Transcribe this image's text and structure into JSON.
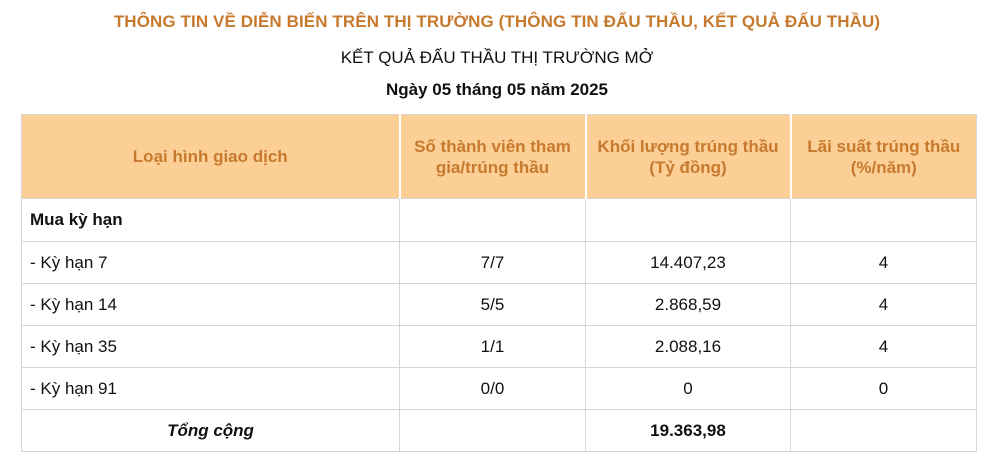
{
  "header": {
    "title": "THÔNG TIN VỀ DIỄN BIẾN TRÊN THỊ TRƯỜNG (THÔNG TIN ĐẤU THẦU, KẾT QUẢ ĐẤU THẦU)",
    "subtitle": "KẾT QUẢ ĐẤU THẦU THỊ TRƯỜNG MỞ",
    "date": "Ngày 05 tháng 05 năm 2025"
  },
  "table": {
    "columns": [
      "Loại hình giao dịch",
      "Số thành viên tham gia/trúng thầu",
      "Khối lượng trúng thầu (Tỷ đồng)",
      "Lãi suất trúng thầu (%/năm)"
    ],
    "group": {
      "label": "Mua kỳ hạn",
      "members": "",
      "volume": "",
      "rate": ""
    },
    "rows": [
      {
        "label": "- Kỳ hạn 7",
        "members": "7/7",
        "volume": "14.407,23",
        "rate": "4"
      },
      {
        "label": "- Kỳ hạn 14",
        "members": "5/5",
        "volume": "2.868,59",
        "rate": "4"
      },
      {
        "label": "- Kỳ hạn 35",
        "members": "1/1",
        "volume": "2.088,16",
        "rate": "4"
      },
      {
        "label": "- Kỳ hạn 91",
        "members": "0/0",
        "volume": "0",
        "rate": "0"
      }
    ],
    "total": {
      "label": "Tổng cộng",
      "members": "",
      "volume": "19.363,98",
      "rate": ""
    }
  },
  "colors": {
    "accent": "#c77a2e",
    "header_bg": "#fbcf96",
    "border": "#d6d6d6"
  }
}
